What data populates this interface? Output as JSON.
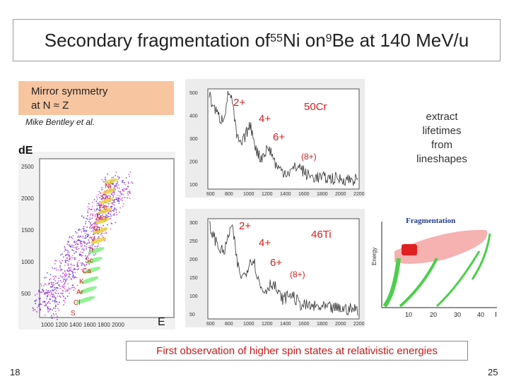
{
  "title": {
    "prefix": "Secondary fragmentation of ",
    "sup1": "55",
    "mid": "Ni on ",
    "sup2": "9",
    "suffix": "Be at 140 MeV/u"
  },
  "mirror": {
    "line1": "Mirror symmetry",
    "line2": "at N ≈ Z"
  },
  "credit": "Mike Bentley et al.",
  "extract": [
    "extract",
    "lifetimes",
    "from",
    "lineshapes"
  ],
  "de_label": "dE",
  "e_label": "E",
  "pid_axes": {
    "y_ticks": [
      "2500",
      "2000",
      "1500",
      "1000",
      "500"
    ],
    "x_ticks": "1000 1200 1400 1600 1800 2000"
  },
  "pid_labels": [
    "Ni",
    "Co",
    "Fe",
    "Mn",
    "Cr",
    "V",
    "Ti",
    "Sc",
    "Ca",
    "K",
    "Ar",
    "Cl",
    "S"
  ],
  "spectrum_top": {
    "nucleus": "50Cr",
    "spins": [
      "2+",
      "4+",
      "6+",
      "(8+)"
    ],
    "y_ticks": [
      "500",
      "400",
      "300",
      "200",
      "100"
    ],
    "x_ticks": [
      "600",
      "800",
      "1000",
      "1200",
      "1400",
      "1600",
      "1800",
      "2000",
      "2200"
    ]
  },
  "spectrum_bottom": {
    "nucleus": "46Ti",
    "spins": [
      "2+",
      "4+",
      "6+",
      "(8+)"
    ],
    "y_ticks": [
      "300",
      "250",
      "200",
      "150",
      "100",
      "50"
    ],
    "x_ticks": [
      "600",
      "800",
      "1000",
      "1200",
      "1400",
      "1600",
      "1800",
      "2000",
      "2200"
    ]
  },
  "frag": {
    "title": "Fragmentation",
    "ylabel": "Energy",
    "x_ticks": [
      "10",
      "20",
      "30",
      "40",
      "I"
    ]
  },
  "caption": "First observation of higher spin states at relativistic energies",
  "page_left": "18",
  "page_right": "25",
  "colors": {
    "accent_red": "#d42020",
    "mirror_bg": "#f7c5a0"
  }
}
